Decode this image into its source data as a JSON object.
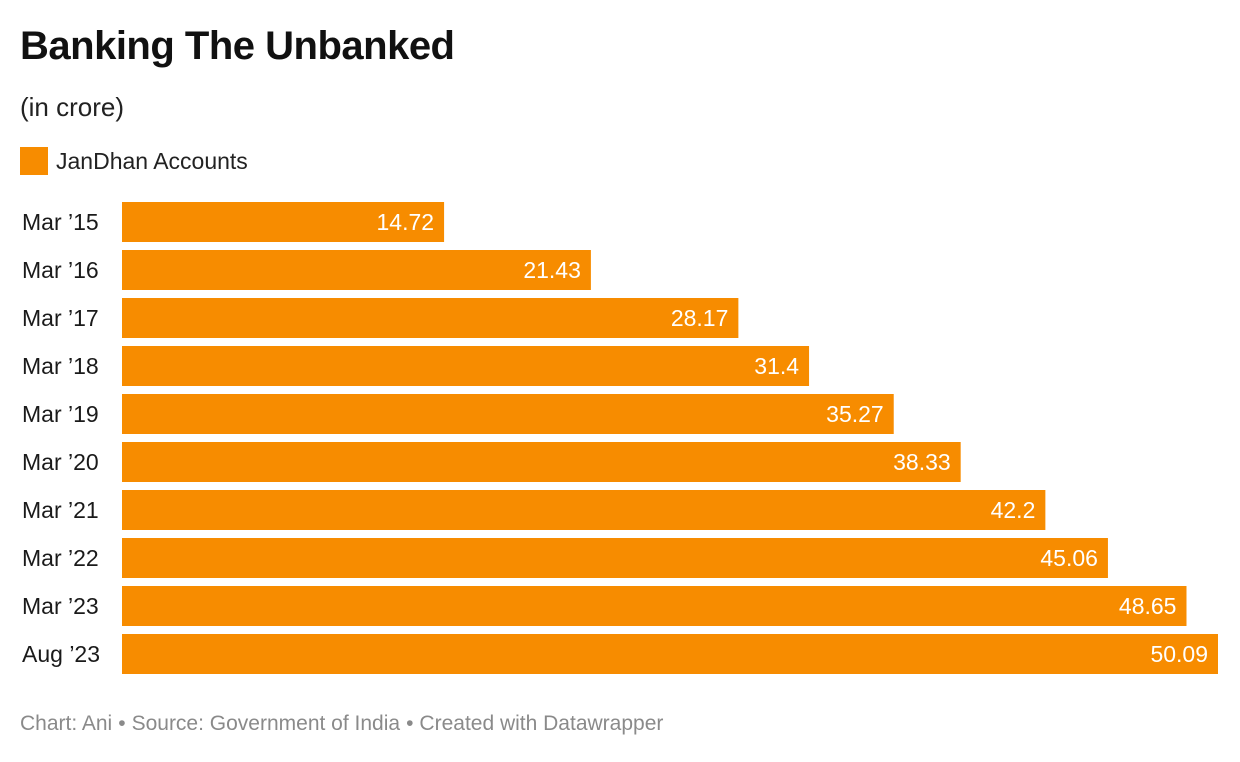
{
  "header": {
    "title": "Banking The Unbanked",
    "subtitle": "(in crore)"
  },
  "footer": {
    "chart_credit": "Chart: Ani",
    "separator": "•",
    "source": "Source: Government of India",
    "created_with": "Created with Datawrapper"
  },
  "colors": {
    "bar": "#f78c00",
    "bar_label": "#ffffff",
    "category_label": "#1a1a1a"
  },
  "chart_data": {
    "type": "bar",
    "orientation": "horizontal",
    "title": "Banking The Unbanked",
    "subtitle": "(in crore)",
    "legend_position": "top-left",
    "grid": false,
    "xlim": [
      0,
      50.09
    ],
    "categories": [
      "Mar ’15",
      "Mar ’16",
      "Mar ’17",
      "Mar ’18",
      "Mar ’19",
      "Mar ’20",
      "Mar ’21",
      "Mar ’22",
      "Mar ’23",
      "Aug ’23"
    ],
    "series": [
      {
        "name": "JanDhan Accounts",
        "values": [
          14.72,
          21.43,
          28.17,
          31.4,
          35.27,
          38.33,
          42.2,
          45.06,
          48.65,
          50.09
        ],
        "labels": [
          "14.72",
          "21.43",
          "28.17",
          "31.4",
          "35.27",
          "38.33",
          "42.2",
          "45.06",
          "48.65",
          "50.09"
        ]
      }
    ]
  }
}
